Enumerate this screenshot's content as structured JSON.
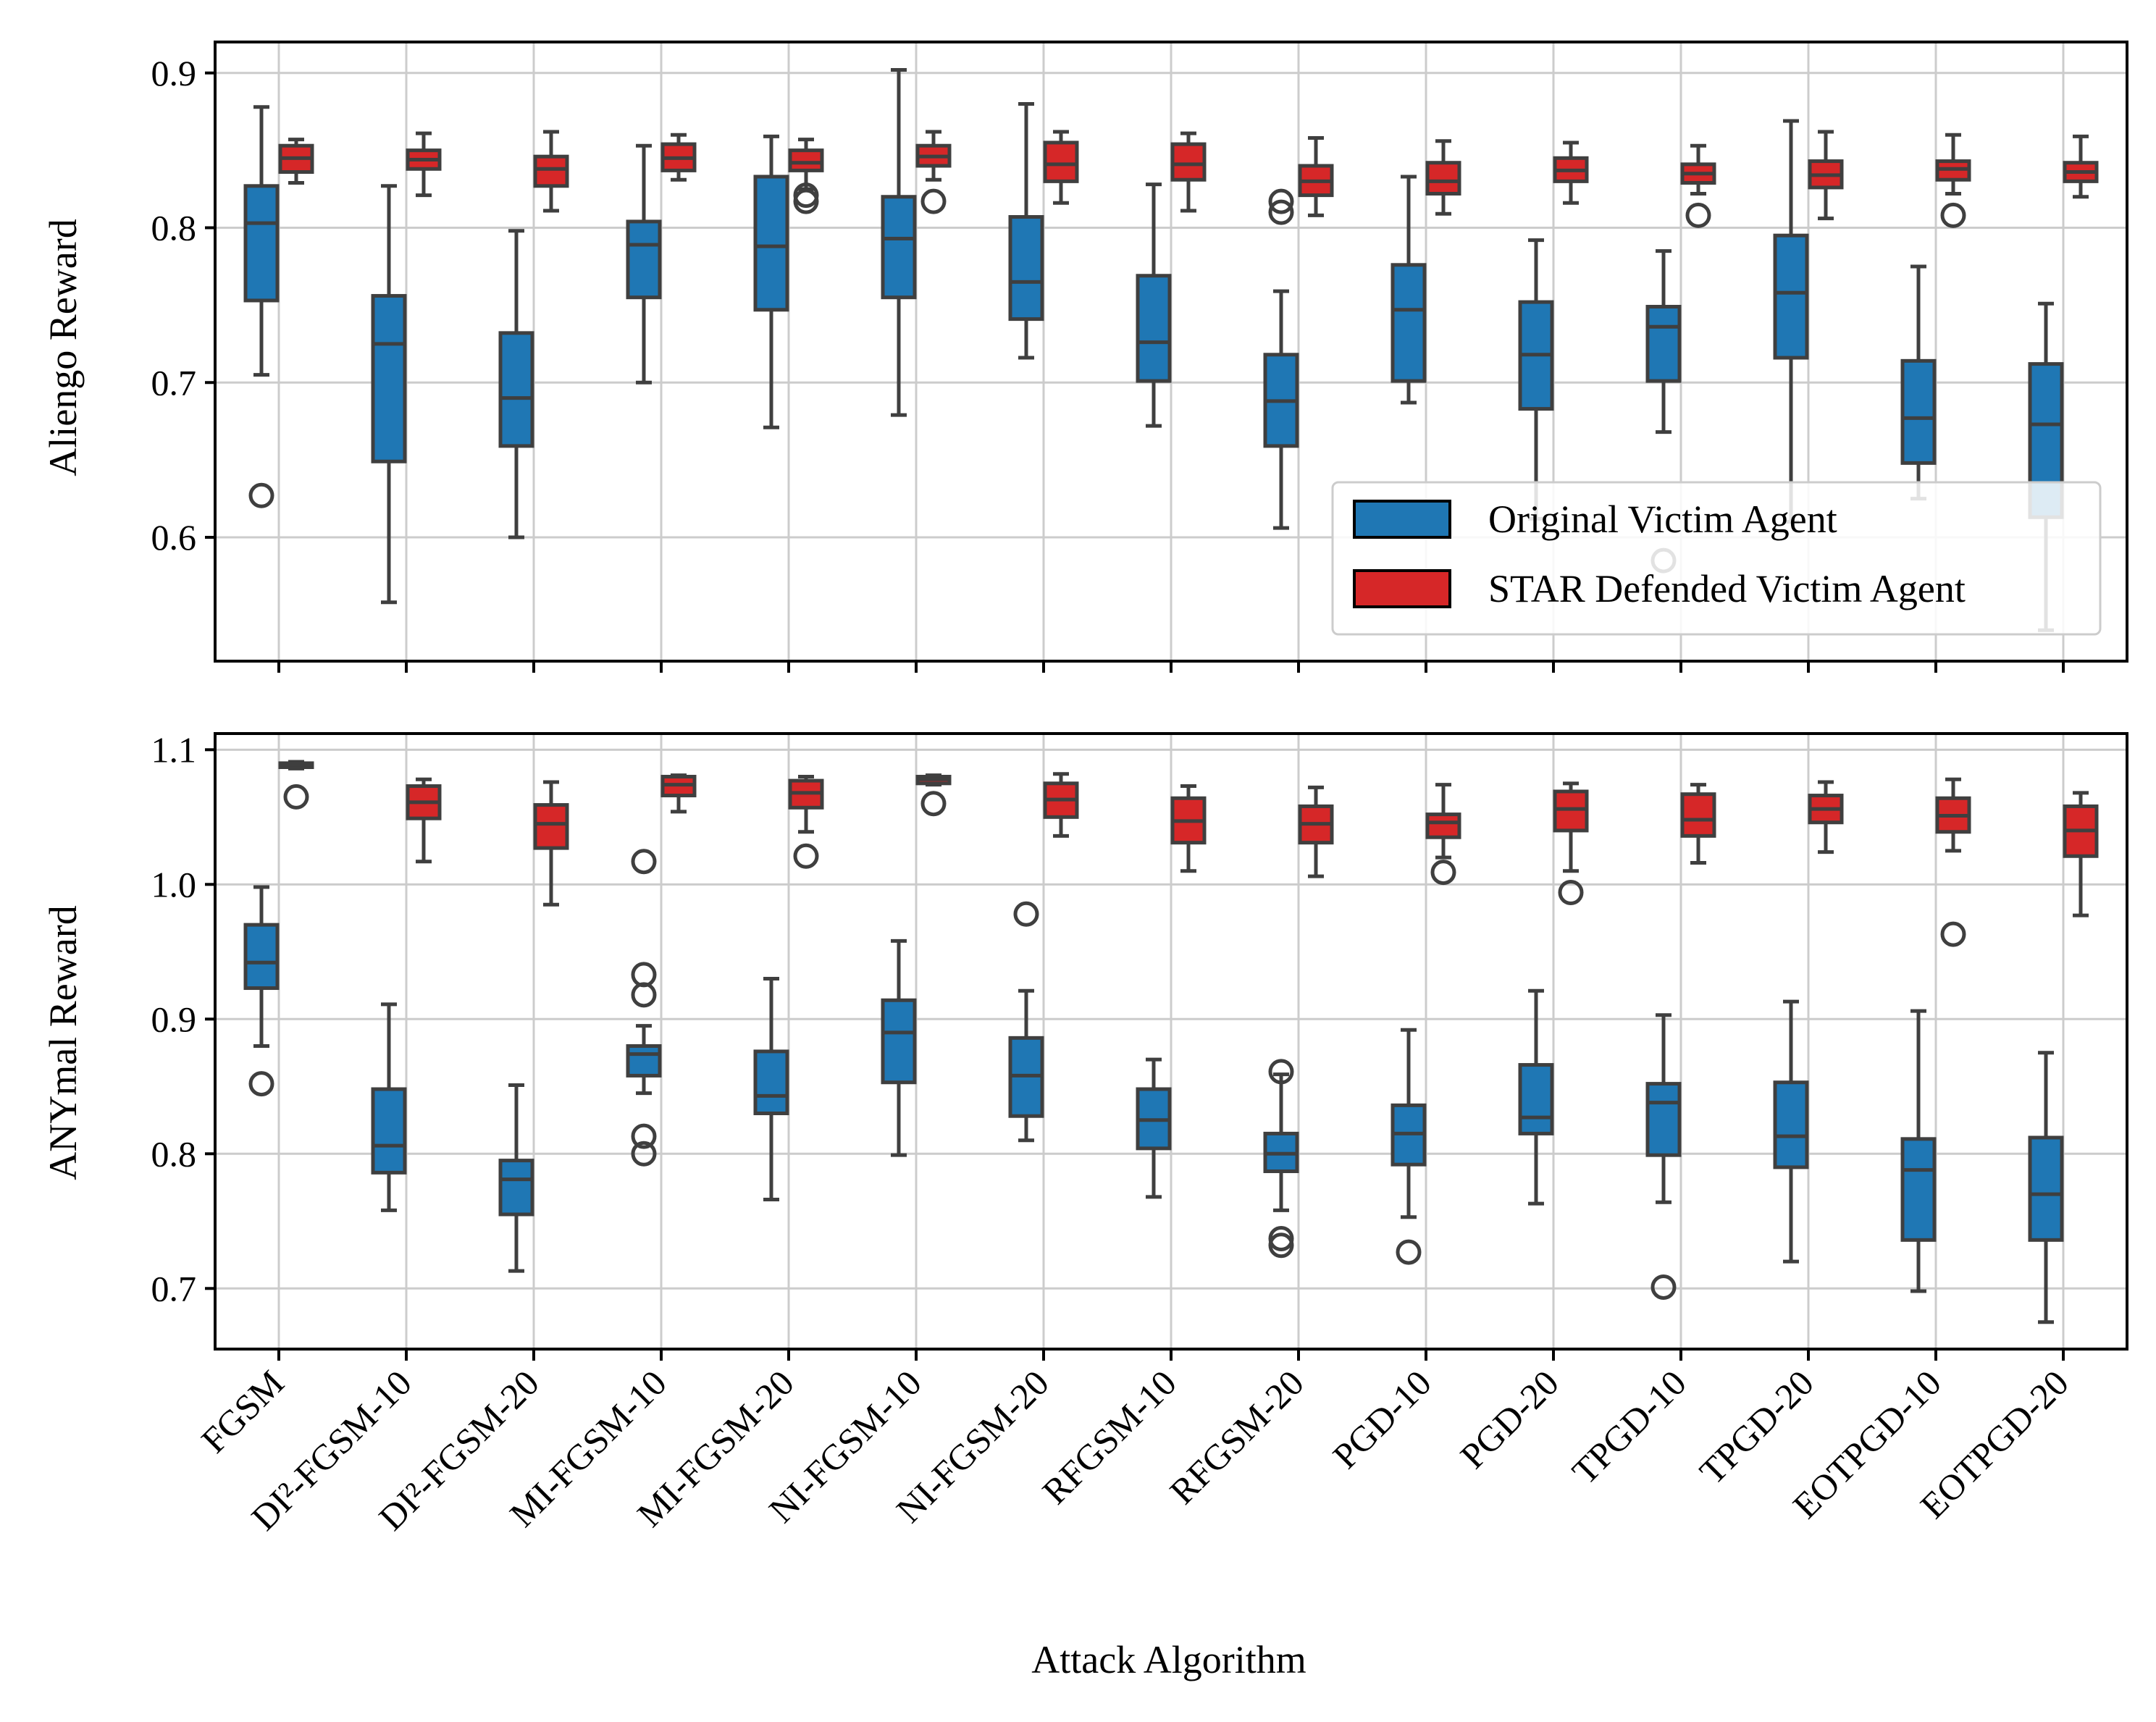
{
  "chart_data": {
    "type": "boxplot",
    "xlabel": "Attack Algorithm",
    "categories": [
      "FGSM",
      "DI²-FGSM-10",
      "DI²-FGSM-20",
      "MI-FGSM-10",
      "MI-FGSM-20",
      "NI-FGSM-10",
      "NI-FGSM-20",
      "RFGSM-10",
      "RFGSM-20",
      "PGD-10",
      "PGD-20",
      "TPGD-10",
      "TPGD-20",
      "EOTPGD-10",
      "EOTPGD-20"
    ],
    "legend": {
      "placement": "lower-right of top panel",
      "entries": [
        {
          "label": "Original Victim Agent",
          "color": "#1f77b4"
        },
        {
          "label": "STAR Defended Victim Agent",
          "color": "#d62728"
        }
      ]
    },
    "panels": [
      {
        "ylabel": "Aliengo Reward",
        "ylim": [
          0.52,
          0.92
        ],
        "yticks": [
          0.6,
          0.7,
          0.8,
          0.9
        ],
        "ytick_labels": [
          "0.6",
          "0.7",
          "0.8",
          "0.9"
        ],
        "grid": true,
        "series": [
          {
            "name": "Original Victim Agent",
            "boxes": [
              {
                "whislo": 0.705,
                "q1": 0.753,
                "med": 0.803,
                "q3": 0.827,
                "whishi": 0.878,
                "fliers": [
                  0.627
                ]
              },
              {
                "whislo": 0.558,
                "q1": 0.649,
                "med": 0.725,
                "q3": 0.756,
                "whishi": 0.827,
                "fliers": []
              },
              {
                "whislo": 0.6,
                "q1": 0.659,
                "med": 0.69,
                "q3": 0.732,
                "whishi": 0.798,
                "fliers": []
              },
              {
                "whislo": 0.7,
                "q1": 0.755,
                "med": 0.789,
                "q3": 0.804,
                "whishi": 0.853,
                "fliers": []
              },
              {
                "whislo": 0.671,
                "q1": 0.747,
                "med": 0.788,
                "q3": 0.833,
                "whishi": 0.859,
                "fliers": []
              },
              {
                "whislo": 0.679,
                "q1": 0.755,
                "med": 0.793,
                "q3": 0.82,
                "whishi": 0.902,
                "fliers": []
              },
              {
                "whislo": 0.716,
                "q1": 0.741,
                "med": 0.765,
                "q3": 0.807,
                "whishi": 0.88,
                "fliers": []
              },
              {
                "whislo": 0.672,
                "q1": 0.701,
                "med": 0.726,
                "q3": 0.769,
                "whishi": 0.828,
                "fliers": []
              },
              {
                "whislo": 0.606,
                "q1": 0.659,
                "med": 0.688,
                "q3": 0.718,
                "whishi": 0.759,
                "fliers": [
                  0.81,
                  0.817
                ]
              },
              {
                "whislo": 0.687,
                "q1": 0.701,
                "med": 0.747,
                "q3": 0.776,
                "whishi": 0.833,
                "fliers": []
              },
              {
                "whislo": 0.612,
                "q1": 0.683,
                "med": 0.718,
                "q3": 0.752,
                "whishi": 0.792,
                "fliers": []
              },
              {
                "whislo": 0.668,
                "q1": 0.701,
                "med": 0.736,
                "q3": 0.749,
                "whishi": 0.785,
                "fliers": [
                  0.585
                ]
              },
              {
                "whislo": 0.61,
                "q1": 0.716,
                "med": 0.758,
                "q3": 0.795,
                "whishi": 0.869,
                "fliers": []
              },
              {
                "whislo": 0.625,
                "q1": 0.648,
                "med": 0.677,
                "q3": 0.714,
                "whishi": 0.775,
                "fliers": []
              },
              {
                "whislo": 0.54,
                "q1": 0.613,
                "med": 0.673,
                "q3": 0.712,
                "whishi": 0.751,
                "fliers": []
              }
            ]
          },
          {
            "name": "STAR Defended Victim Agent",
            "boxes": [
              {
                "whislo": 0.829,
                "q1": 0.836,
                "med": 0.845,
                "q3": 0.853,
                "whishi": 0.857,
                "fliers": []
              },
              {
                "whislo": 0.821,
                "q1": 0.838,
                "med": 0.844,
                "q3": 0.85,
                "whishi": 0.861,
                "fliers": []
              },
              {
                "whislo": 0.811,
                "q1": 0.827,
                "med": 0.838,
                "q3": 0.846,
                "whishi": 0.862,
                "fliers": []
              },
              {
                "whislo": 0.831,
                "q1": 0.837,
                "med": 0.845,
                "q3": 0.854,
                "whishi": 0.86,
                "fliers": []
              },
              {
                "whislo": 0.825,
                "q1": 0.837,
                "med": 0.842,
                "q3": 0.85,
                "whishi": 0.857,
                "fliers": [
                  0.817,
                  0.821
                ]
              },
              {
                "whislo": 0.831,
                "q1": 0.84,
                "med": 0.846,
                "q3": 0.853,
                "whishi": 0.862,
                "fliers": [
                  0.817
                ]
              },
              {
                "whislo": 0.816,
                "q1": 0.83,
                "med": 0.841,
                "q3": 0.855,
                "whishi": 0.862,
                "fliers": []
              },
              {
                "whislo": 0.811,
                "q1": 0.831,
                "med": 0.841,
                "q3": 0.854,
                "whishi": 0.861,
                "fliers": []
              },
              {
                "whislo": 0.808,
                "q1": 0.821,
                "med": 0.83,
                "q3": 0.84,
                "whishi": 0.858,
                "fliers": []
              },
              {
                "whislo": 0.809,
                "q1": 0.822,
                "med": 0.83,
                "q3": 0.842,
                "whishi": 0.856,
                "fliers": []
              },
              {
                "whislo": 0.816,
                "q1": 0.83,
                "med": 0.837,
                "q3": 0.845,
                "whishi": 0.855,
                "fliers": []
              },
              {
                "whislo": 0.822,
                "q1": 0.829,
                "med": 0.835,
                "q3": 0.841,
                "whishi": 0.853,
                "fliers": [
                  0.808
                ]
              },
              {
                "whislo": 0.806,
                "q1": 0.826,
                "med": 0.834,
                "q3": 0.843,
                "whishi": 0.862,
                "fliers": []
              },
              {
                "whislo": 0.822,
                "q1": 0.831,
                "med": 0.838,
                "q3": 0.843,
                "whishi": 0.86,
                "fliers": [
                  0.808
                ]
              },
              {
                "whislo": 0.82,
                "q1": 0.83,
                "med": 0.836,
                "q3": 0.842,
                "whishi": 0.859,
                "fliers": []
              }
            ]
          }
        ]
      },
      {
        "ylabel": "ANYmal Reward",
        "ylim": [
          0.655,
          1.112
        ],
        "yticks": [
          0.7,
          0.8,
          0.9,
          1.0,
          1.1
        ],
        "ytick_labels": [
          "0.7",
          "0.8",
          "0.9",
          "1.0",
          "1.1"
        ],
        "grid": true,
        "series": [
          {
            "name": "Original Victim Agent",
            "boxes": [
              {
                "whislo": 0.88,
                "q1": 0.923,
                "med": 0.942,
                "q3": 0.97,
                "whishi": 0.998,
                "fliers": [
                  0.852
                ]
              },
              {
                "whislo": 0.758,
                "q1": 0.786,
                "med": 0.806,
                "q3": 0.848,
                "whishi": 0.911,
                "fliers": []
              },
              {
                "whislo": 0.713,
                "q1": 0.755,
                "med": 0.781,
                "q3": 0.795,
                "whishi": 0.851,
                "fliers": []
              },
              {
                "whislo": 0.845,
                "q1": 0.858,
                "med": 0.874,
                "q3": 0.88,
                "whishi": 0.895,
                "fliers": [
                  1.017,
                  0.933,
                  0.918,
                  0.813,
                  0.8
                ]
              },
              {
                "whislo": 0.766,
                "q1": 0.83,
                "med": 0.843,
                "q3": 0.876,
                "whishi": 0.93,
                "fliers": []
              },
              {
                "whislo": 0.799,
                "q1": 0.853,
                "med": 0.89,
                "q3": 0.914,
                "whishi": 0.958,
                "fliers": []
              },
              {
                "whislo": 0.81,
                "q1": 0.828,
                "med": 0.858,
                "q3": 0.886,
                "whishi": 0.921,
                "fliers": [
                  0.978
                ]
              },
              {
                "whislo": 0.768,
                "q1": 0.804,
                "med": 0.825,
                "q3": 0.848,
                "whishi": 0.87,
                "fliers": []
              },
              {
                "whislo": 0.758,
                "q1": 0.787,
                "med": 0.8,
                "q3": 0.815,
                "whishi": 0.859,
                "fliers": [
                  0.861,
                  0.737,
                  0.732
                ]
              },
              {
                "whislo": 0.753,
                "q1": 0.792,
                "med": 0.815,
                "q3": 0.836,
                "whishi": 0.892,
                "fliers": [
                  0.727
                ]
              },
              {
                "whislo": 0.763,
                "q1": 0.815,
                "med": 0.827,
                "q3": 0.866,
                "whishi": 0.921,
                "fliers": []
              },
              {
                "whislo": 0.764,
                "q1": 0.799,
                "med": 0.838,
                "q3": 0.852,
                "whishi": 0.903,
                "fliers": [
                  0.701
                ]
              },
              {
                "whislo": 0.72,
                "q1": 0.79,
                "med": 0.813,
                "q3": 0.853,
                "whishi": 0.913,
                "fliers": []
              },
              {
                "whislo": 0.698,
                "q1": 0.736,
                "med": 0.788,
                "q3": 0.811,
                "whishi": 0.906,
                "fliers": []
              },
              {
                "whislo": 0.675,
                "q1": 0.736,
                "med": 0.77,
                "q3": 0.812,
                "whishi": 0.875,
                "fliers": []
              }
            ]
          },
          {
            "name": "STAR Defended Victim Agent",
            "boxes": [
              {
                "whislo": 1.086,
                "q1": 1.087,
                "med": 1.089,
                "q3": 1.09,
                "whishi": 1.091,
                "fliers": [
                  1.065
                ]
              },
              {
                "whislo": 1.017,
                "q1": 1.049,
                "med": 1.061,
                "q3": 1.073,
                "whishi": 1.078,
                "fliers": []
              },
              {
                "whislo": 0.985,
                "q1": 1.027,
                "med": 1.045,
                "q3": 1.059,
                "whishi": 1.076,
                "fliers": []
              },
              {
                "whislo": 1.054,
                "q1": 1.066,
                "med": 1.074,
                "q3": 1.08,
                "whishi": 1.081,
                "fliers": []
              },
              {
                "whislo": 1.039,
                "q1": 1.057,
                "med": 1.068,
                "q3": 1.077,
                "whishi": 1.08,
                "fliers": [
                  1.021
                ]
              },
              {
                "whislo": 1.074,
                "q1": 1.075,
                "med": 1.078,
                "q3": 1.08,
                "whishi": 1.081,
                "fliers": [
                  1.06
                ]
              },
              {
                "whislo": 1.036,
                "q1": 1.05,
                "med": 1.063,
                "q3": 1.075,
                "whishi": 1.082,
                "fliers": []
              },
              {
                "whislo": 1.01,
                "q1": 1.031,
                "med": 1.047,
                "q3": 1.064,
                "whishi": 1.073,
                "fliers": []
              },
              {
                "whislo": 1.006,
                "q1": 1.031,
                "med": 1.045,
                "q3": 1.058,
                "whishi": 1.072,
                "fliers": []
              },
              {
                "whislo": 1.02,
                "q1": 1.035,
                "med": 1.046,
                "q3": 1.052,
                "whishi": 1.074,
                "fliers": [
                  1.009
                ]
              },
              {
                "whislo": 1.01,
                "q1": 1.04,
                "med": 1.056,
                "q3": 1.069,
                "whishi": 1.075,
                "fliers": [
                  0.994
                ]
              },
              {
                "whislo": 1.016,
                "q1": 1.036,
                "med": 1.048,
                "q3": 1.067,
                "whishi": 1.074,
                "fliers": []
              },
              {
                "whislo": 1.024,
                "q1": 1.046,
                "med": 1.056,
                "q3": 1.066,
                "whishi": 1.076,
                "fliers": []
              },
              {
                "whislo": 1.025,
                "q1": 1.039,
                "med": 1.051,
                "q3": 1.064,
                "whishi": 1.078,
                "fliers": [
                  0.963
                ]
              },
              {
                "whislo": 0.977,
                "q1": 1.021,
                "med": 1.04,
                "q3": 1.058,
                "whishi": 1.068,
                "fliers": []
              }
            ]
          }
        ]
      }
    ]
  }
}
